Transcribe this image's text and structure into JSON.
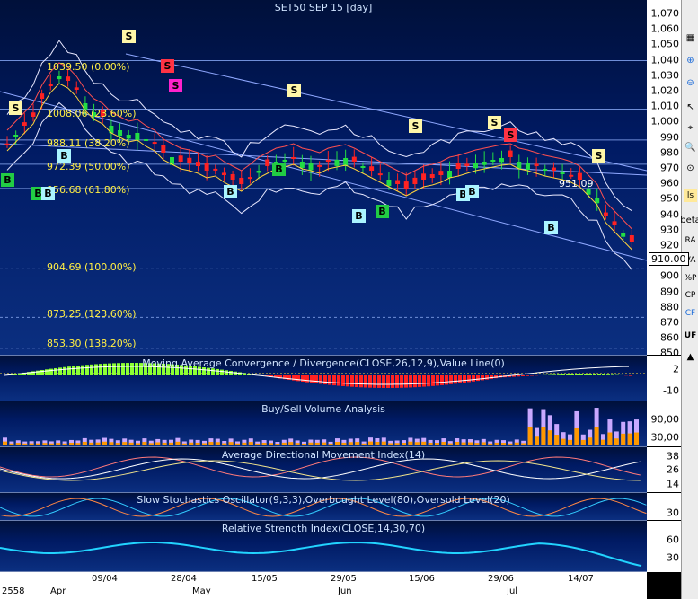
{
  "main": {
    "title": "SET50 SEP 15   [day]",
    "yticks": [
      "1,070",
      "1,060",
      "1,050",
      "1,040",
      "1,030",
      "1,020",
      "1,010",
      "1,000",
      "990",
      "980",
      "970",
      "960",
      "950",
      "940",
      "930",
      "920",
      "910",
      "900",
      "890",
      "880",
      "870",
      "860",
      "850"
    ],
    "last_price": "910.00",
    "annotation": "951.09",
    "fib": [
      {
        "label": "1039.50 (0.00%)",
        "value": 1039.5
      },
      {
        "label": "1008.06 (23.60%)",
        "value": 1008.06
      },
      {
        "label": "988.11 (38.20%)",
        "value": 988.11
      },
      {
        "label": "972.39 (50.00%)",
        "value": 972.39
      },
      {
        "label": "956.68 (61.80%)",
        "value": 956.68
      },
      {
        "label": "904.69 (100.00%)",
        "value": 904.69
      },
      {
        "label": "873.25 (123.60%)",
        "value": 873.25
      },
      {
        "label": "853.30 (138.20%)",
        "value": 853.3
      }
    ],
    "signals": [
      "S",
      "S",
      "S",
      "S",
      "S",
      "S",
      "S",
      "S",
      "S",
      "B",
      "B",
      "B",
      "B",
      "B",
      "B",
      "B",
      "B",
      "B",
      "B",
      "B"
    ]
  },
  "macd": {
    "title": "Moving Average Convergence / Divergence(CLOSE,26,12,9),Value Line(0)",
    "yticks": [
      "2",
      "-10"
    ]
  },
  "volume": {
    "title": "Buy/Sell Volume Analysis",
    "yticks": [
      "90,00",
      "30,00"
    ]
  },
  "adx": {
    "title": "Average Directional Movement Index(14)",
    "yticks": [
      "38",
      "26",
      "14"
    ]
  },
  "stoch": {
    "title": "Slow Stochastics Oscillator(9,3,3),Overbought Level(80),Oversold Level(20)",
    "yticks": [
      "30"
    ]
  },
  "rsi": {
    "title": "Relative Strength Index(CLOSE,14,30,70)",
    "yticks": [
      "60",
      "30"
    ]
  },
  "xaxis": {
    "labels": [
      "2558",
      "Apr",
      "09/04",
      "May",
      "28/04",
      "15/05",
      "Jun",
      "29/05",
      "15/06",
      "29/06",
      "Jul",
      "14/07"
    ]
  },
  "toolbar": {
    "items": [
      "zoom-in-icon",
      "zoom-out-icon",
      "zoom-in-icon",
      "zoom-out-icon",
      "crosshair-icon",
      "ls",
      "beta",
      "RA",
      "VA",
      "%P",
      "CP",
      "CF",
      "UF"
    ]
  },
  "colors": {
    "bg": "#001a63",
    "up": "#22dd44",
    "down": "#ff2222",
    "fib": "#ffee44"
  }
}
